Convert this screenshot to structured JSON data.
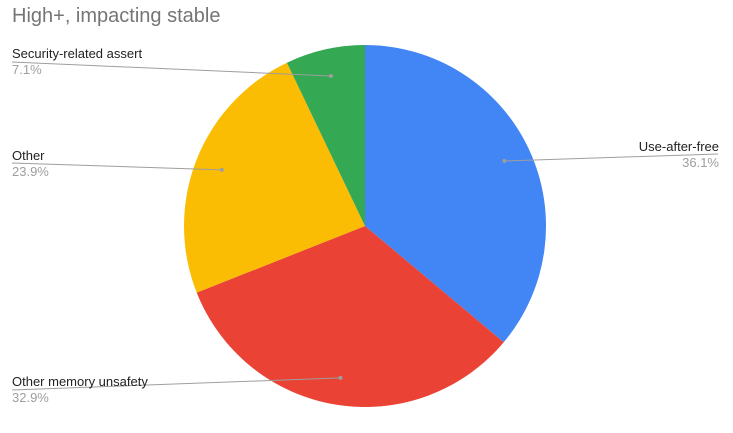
{
  "chart_data": {
    "type": "pie",
    "title": "High+, impacting stable",
    "slices": [
      {
        "name": "Use-after-free",
        "value": 36.1,
        "label": "36.1%",
        "color": "#4285f4"
      },
      {
        "name": "Other memory unsafety",
        "value": 32.9,
        "label": "32.9%",
        "color": "#ea4335"
      },
      {
        "name": "Other",
        "value": 23.9,
        "label": "23.9%",
        "color": "#fbbc04"
      },
      {
        "name": "Security-related assert",
        "value": 7.1,
        "label": "7.1%",
        "color": "#34a853"
      }
    ],
    "legend": "none",
    "label_style": "callout"
  }
}
